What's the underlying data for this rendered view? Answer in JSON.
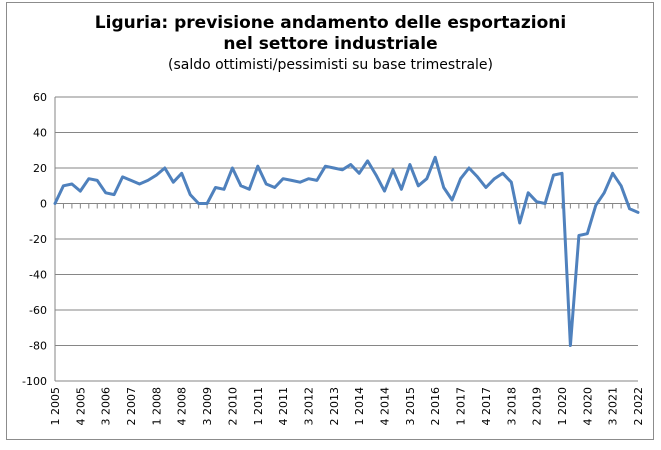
{
  "chart_data": {
    "type": "line",
    "title": "Liguria: previsione andamento delle esportazioni",
    "title_line2": "nel settore industriale",
    "subtitle": "(saldo ottimisti/pessimisti su base trimestrale)",
    "xlabel": "",
    "ylabel": "",
    "ylim": [
      -100,
      60
    ],
    "yticks": [
      60,
      40,
      20,
      0,
      -20,
      -40,
      -60,
      -80,
      -100
    ],
    "grid": true,
    "legend": "none",
    "line_color": "#4f81bd",
    "x": [
      "1 2005",
      "2 2005",
      "3 2005",
      "4 2005",
      "1 2006",
      "2 2006",
      "3 2006",
      "4 2006",
      "1 2007",
      "2 2007",
      "3 2007",
      "4 2007",
      "1 2008",
      "2 2008",
      "3 2008",
      "4 2008",
      "1 2009",
      "2 2009",
      "3 2009",
      "4 2009",
      "1 2010",
      "2 2010",
      "3 2010",
      "4 2010",
      "1 2011",
      "2 2011",
      "3 2011",
      "4 2011",
      "1 2012",
      "2 2012",
      "3 2012",
      "4 2012",
      "1 2013",
      "2 2013",
      "3 2013",
      "4 2013",
      "1 2014",
      "2 2014",
      "3 2014",
      "4 2014",
      "1 2015",
      "2 2015",
      "3 2015",
      "4 2015",
      "1 2016",
      "2 2016",
      "3 2016",
      "4 2016",
      "1 2017",
      "2 2017",
      "3 2017",
      "4 2017",
      "1 2018",
      "2 2018",
      "3 2018",
      "4 2018",
      "1 2019",
      "2 2019",
      "3 2019",
      "4 2019",
      "1 2020",
      "2 2020",
      "3 2020",
      "4 2020",
      "1 2021",
      "2 2021",
      "3 2021",
      "4 2021",
      "1 2022",
      "2 2022"
    ],
    "xtick_labels": [
      "1 2005",
      "4 2005",
      "3 2006",
      "2 2007",
      "1 2008",
      "4 2008",
      "3 2009",
      "2 2010",
      "1 2011",
      "4 2011",
      "3 2012",
      "2 2013",
      "1 2014",
      "4 2014",
      "3 2015",
      "2 2016",
      "1 2017",
      "4 2017",
      "3 2018",
      "2 2019",
      "1 2020",
      "4 2020",
      "3 2021",
      "2 2022"
    ],
    "series": [
      {
        "values": [
          0,
          10,
          11,
          7,
          14,
          13,
          6,
          5,
          15,
          13,
          11,
          13,
          16,
          20,
          12,
          17,
          5,
          0,
          0,
          9,
          8,
          20,
          10,
          8,
          21,
          11,
          9,
          14,
          13,
          12,
          14,
          13,
          21,
          20,
          19,
          22,
          17,
          24,
          16,
          7,
          19,
          8,
          22,
          10,
          14,
          26,
          9,
          2,
          14,
          20,
          15,
          9,
          14,
          17,
          12,
          -11,
          6,
          1,
          0,
          16,
          17,
          -80,
          -18,
          -17,
          -1,
          6,
          17,
          10,
          -3,
          -5
        ]
      }
    ]
  }
}
